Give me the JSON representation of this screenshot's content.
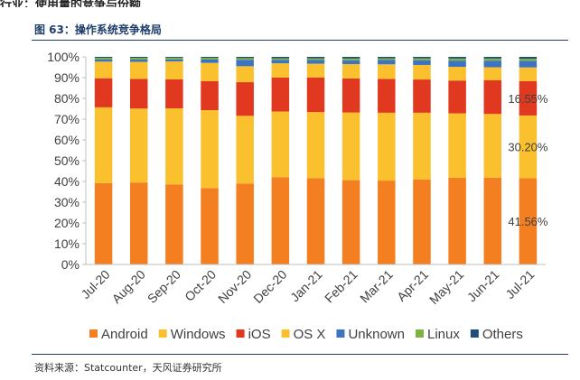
{
  "header_snippet": "行业：使用量的竞争与份额",
  "figure_title": "图 63：操作系统竞争格局",
  "source_note": "资料来源：Statcounter，天风证券研究所",
  "chart_data": {
    "type": "bar",
    "stacked": true,
    "title": "",
    "xlabel": "",
    "ylabel": "",
    "ylim": [
      0,
      100
    ],
    "y_tick_labels": [
      "0%",
      "10%",
      "20%",
      "30%",
      "40%",
      "50%",
      "60%",
      "70%",
      "80%",
      "90%",
      "100%"
    ],
    "grid": false,
    "legend_position": "bottom",
    "categories": [
      "Jul-20",
      "Aug-20",
      "Sep-20",
      "Oct-20",
      "Nov-20",
      "Dec-20",
      "Jan-21",
      "Feb-21",
      "Mar-21",
      "Apr-21",
      "May-21",
      "Jun-21",
      "Jul-21"
    ],
    "series": [
      {
        "name": "Android",
        "color": "#f47f20",
        "values": [
          39.2,
          39.5,
          38.6,
          36.8,
          39.0,
          42.0,
          41.6,
          40.6,
          40.4,
          40.9,
          41.8,
          41.8,
          41.56
        ]
      },
      {
        "name": "Windows",
        "color": "#fbc02d",
        "values": [
          36.5,
          35.6,
          36.6,
          37.5,
          32.6,
          31.7,
          31.8,
          32.6,
          32.7,
          32.2,
          31.0,
          30.7,
          30.2
        ]
      },
      {
        "name": "iOS",
        "color": "#e0391f",
        "values": [
          14.0,
          14.3,
          14.0,
          14.0,
          16.2,
          16.4,
          16.7,
          16.4,
          16.3,
          16.0,
          15.8,
          16.2,
          16.55
        ]
      },
      {
        "name": "OS X",
        "color": "#fbc02d",
        "values": [
          8.0,
          8.2,
          8.6,
          8.8,
          7.7,
          6.8,
          6.6,
          6.9,
          7.0,
          7.0,
          6.6,
          6.3,
          6.6
        ]
      },
      {
        "name": "Unknown",
        "color": "#3d74c1",
        "values": [
          1.0,
          1.1,
          1.0,
          1.6,
          3.1,
          1.6,
          1.8,
          1.8,
          2.1,
          2.3,
          3.0,
          3.2,
          3.2
        ]
      },
      {
        "name": "Linux",
        "color": "#7cb342",
        "values": [
          0.8,
          0.8,
          0.8,
          0.8,
          0.8,
          0.8,
          0.8,
          0.9,
          0.8,
          0.9,
          1.0,
          1.0,
          1.0
        ]
      },
      {
        "name": "Others",
        "color": "#1f4e79",
        "values": [
          0.5,
          0.5,
          0.4,
          0.5,
          0.6,
          0.7,
          0.7,
          0.8,
          0.7,
          0.7,
          0.8,
          0.8,
          0.89
        ]
      }
    ],
    "data_labels": [
      {
        "series": "iOS",
        "category": "Jul-21",
        "text": "16.55%"
      },
      {
        "series": "Windows",
        "category": "Jul-21",
        "text": "30.20%"
      },
      {
        "series": "Android",
        "category": "Jul-21",
        "text": "41.56%"
      }
    ]
  }
}
